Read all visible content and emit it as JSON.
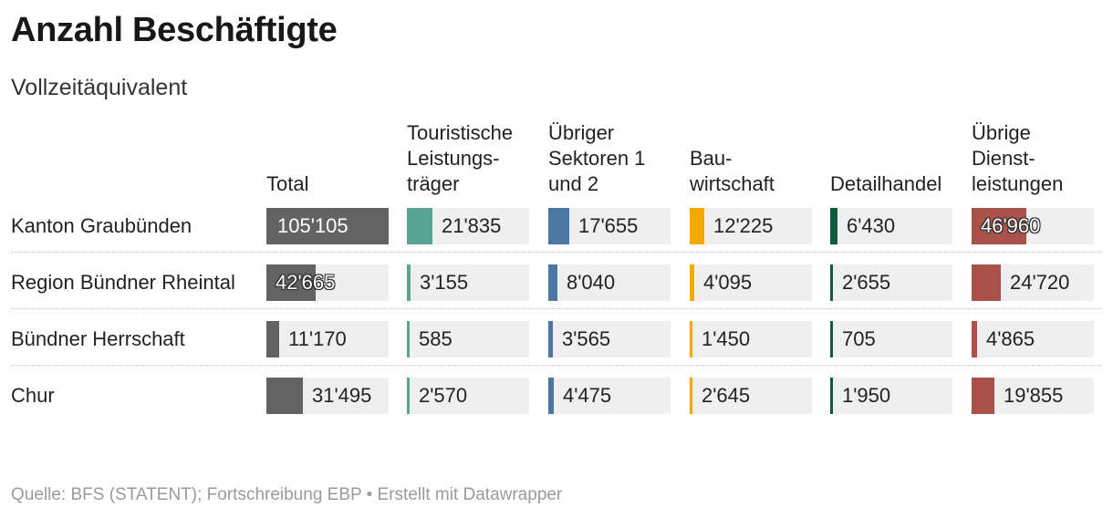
{
  "chart_data": {
    "type": "table",
    "title": "Anzahl Beschäftigte",
    "subtitle": "Vollzeitäquivalent",
    "source": "Quelle: BFS (STATENT); Fortschreibung EBP • Erstellt mit Datawrapper",
    "columns": [
      {
        "key": "total",
        "label": "Total",
        "color": "#636363",
        "max": 105105
      },
      {
        "key": "tourism",
        "label": "Touristische\nLeistungs-\nträger",
        "color": "#5aa592",
        "max": 105105
      },
      {
        "key": "sector12",
        "label": "Übriger\nSektoren 1\nund 2",
        "color": "#4a77a4",
        "max": 105105
      },
      {
        "key": "construction",
        "label": "Bau-\nwirtschaft",
        "color": "#f2a900",
        "max": 105105
      },
      {
        "key": "retail",
        "label": "Detailhandel",
        "color": "#0e5c3c",
        "max": 105105
      },
      {
        "key": "services",
        "label": "Übrige\nDienst-\nleistungen",
        "color": "#a8524a",
        "max": 105105
      }
    ],
    "rows": [
      {
        "label": "Kanton Graubünden",
        "values": [
          105105,
          21835,
          17655,
          12225,
          6430,
          46960
        ],
        "display": [
          "105'105",
          "21'835",
          "17'655",
          "12'225",
          "6'430",
          "46'960"
        ]
      },
      {
        "label": "Region Bündner Rheintal",
        "values": [
          42665,
          3155,
          8040,
          4095,
          2655,
          24720
        ],
        "display": [
          "42'665",
          "3'155",
          "8'040",
          "4'095",
          "2'655",
          "24'720"
        ]
      },
      {
        "label": "Bündner Herrschaft",
        "values": [
          11170,
          585,
          3565,
          1450,
          705,
          4865
        ],
        "display": [
          "11'170",
          "585",
          "3'565",
          "1'450",
          "705",
          "4'865"
        ]
      },
      {
        "label": "Chur",
        "values": [
          31495,
          2570,
          4475,
          2645,
          1950,
          19855
        ],
        "display": [
          "31'495",
          "2'570",
          "4'475",
          "2'645",
          "1'950",
          "19'855"
        ]
      }
    ]
  }
}
